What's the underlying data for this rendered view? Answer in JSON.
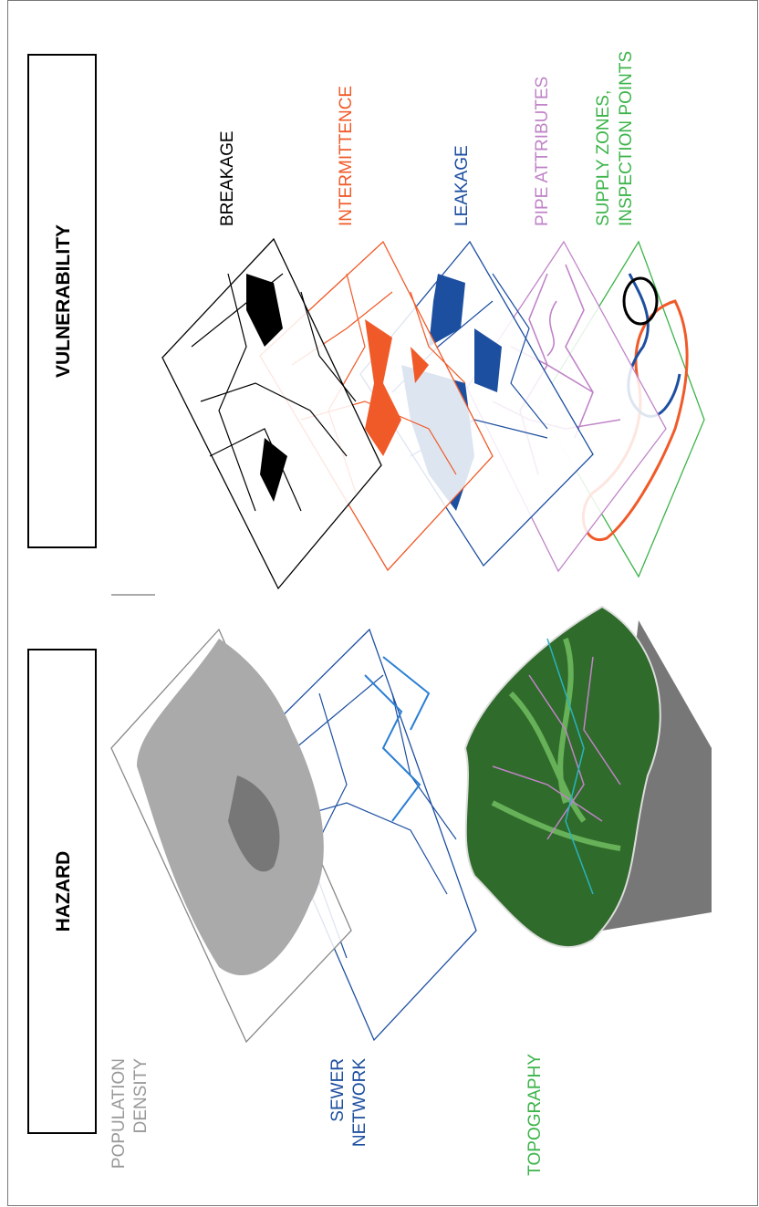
{
  "hazard": {
    "title": "HAZARD",
    "layers": [
      {
        "lines": [
          "POPULATION",
          "DENSITY"
        ]
      },
      {
        "lines": [
          "SEWER",
          "NETWORK"
        ]
      },
      {
        "lines": [
          "TOPOGRAPHY"
        ]
      }
    ]
  },
  "vulnerability": {
    "title": "VULNERABILITY",
    "layers": [
      {
        "lines": [
          "BREAKAGE"
        ]
      },
      {
        "lines": [
          "INTERMITTENCE"
        ]
      },
      {
        "lines": [
          "LEAKAGE"
        ]
      },
      {
        "lines": [
          "PIPE ATTRIBUTES"
        ]
      },
      {
        "lines": [
          "SUPPLY ZONES,",
          "INSPECTION POINTS"
        ]
      }
    ]
  }
}
